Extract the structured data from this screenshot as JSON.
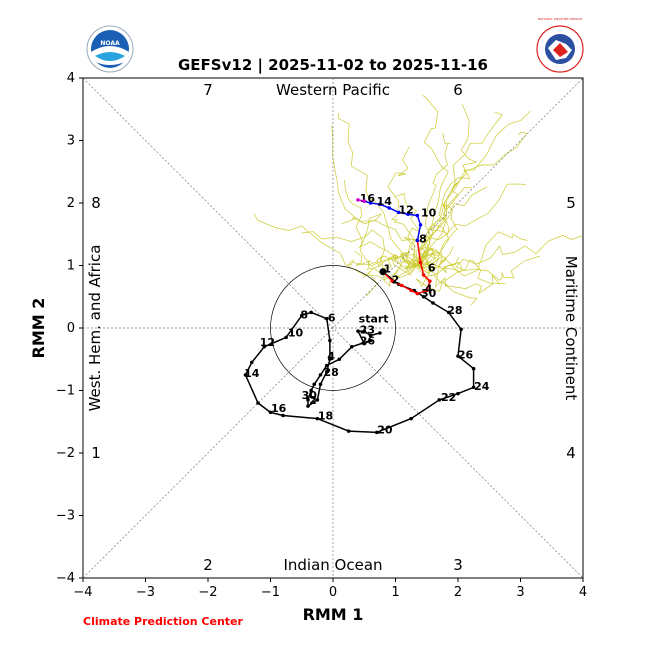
{
  "logos": {
    "left_text": "NOAA",
    "right_text": "NATIONAL WEATHER SERVICE"
  },
  "credit": "Climate Prediction Center",
  "chart_data": {
    "type": "line",
    "title": "GEFSv12 | 2025-11-02 to 2025-11-16",
    "xlabel": "RMM 1",
    "ylabel": "RMM 2",
    "xlim": [
      -4,
      4
    ],
    "ylim": [
      -4,
      4
    ],
    "xticks": [
      "−4",
      "−3",
      "−2",
      "−1",
      "0",
      "1",
      "2",
      "3",
      "4"
    ],
    "yticks": [
      "−4",
      "−3",
      "−2",
      "−1",
      "0",
      "1",
      "2",
      "3",
      "4"
    ],
    "regions": {
      "top": "Western Pacific",
      "bottom": "Indian Ocean",
      "left": "West. Hem. and Africa",
      "right": "Maritime Continent"
    },
    "phases": [
      "1",
      "2",
      "3",
      "4",
      "5",
      "6",
      "7",
      "8"
    ],
    "start_label": "start",
    "colors": {
      "observed": "#000000",
      "week1": "#ff0000",
      "week2": "#0000ff",
      "tail": "#cc00cc",
      "members": "#cccc33"
    },
    "series": [
      {
        "type": "observed",
        "points": [
          [
            0.75,
            -0.08
          ],
          [
            0.6,
            -0.12
          ],
          [
            0.5,
            -0.05
          ],
          [
            0.4,
            -0.05
          ],
          [
            0.5,
            -0.25
          ],
          [
            0.6,
            -0.2
          ],
          [
            0.3,
            -0.3
          ],
          [
            0.1,
            -0.5
          ],
          [
            -0.1,
            -0.6
          ],
          [
            -0.2,
            -0.75
          ],
          [
            -0.3,
            -0.9
          ],
          [
            -0.35,
            -1.0
          ],
          [
            -0.4,
            -1.15
          ],
          [
            -0.4,
            -1.25
          ],
          [
            -0.25,
            -1.15
          ],
          [
            -0.2,
            -0.9
          ],
          [
            -0.1,
            -0.7
          ],
          [
            -0.05,
            -0.5
          ],
          [
            -0.05,
            -0.2
          ],
          [
            -0.1,
            0.15
          ],
          [
            -0.35,
            0.25
          ],
          [
            -0.5,
            0.2
          ],
          [
            -0.75,
            -0.15
          ],
          [
            -1.1,
            -0.3
          ],
          [
            -1.3,
            -0.55
          ],
          [
            -1.4,
            -0.75
          ],
          [
            -1.2,
            -1.2
          ],
          [
            -1.0,
            -1.35
          ],
          [
            -0.8,
            -1.4
          ],
          [
            -0.25,
            -1.45
          ],
          [
            0.25,
            -1.65
          ],
          [
            0.7,
            -1.67
          ],
          [
            1.25,
            -1.45
          ],
          [
            1.7,
            -1.15
          ],
          [
            2.0,
            -1.05
          ],
          [
            2.25,
            -0.95
          ],
          [
            2.25,
            -0.65
          ],
          [
            2.0,
            -0.45
          ],
          [
            2.05,
            -0.02
          ],
          [
            1.85,
            0.25
          ],
          [
            1.6,
            0.4
          ],
          [
            1.45,
            0.5
          ],
          [
            1.3,
            0.6
          ],
          [
            1.05,
            0.7
          ],
          [
            0.8,
            0.9
          ]
        ],
        "labels": [
          {
            "text": "start",
            "x": 0.65,
            "y": 0.15
          },
          {
            "text": "23",
            "x": 0.55,
            "y": -0.02
          },
          {
            "text": "26",
            "x": 0.55,
            "y": -0.2
          },
          {
            "text": "4",
            "x": -0.03,
            "y": -0.45
          },
          {
            "text": "28",
            "x": -0.03,
            "y": -0.7
          },
          {
            "text": "30",
            "x": -0.38,
            "y": -1.07
          },
          {
            "text": "2",
            "x": -0.32,
            "y": -1.15
          },
          {
            "text": "6",
            "x": -0.02,
            "y": 0.17
          },
          {
            "text": "8",
            "x": -0.46,
            "y": 0.22
          },
          {
            "text": "10",
            "x": -0.6,
            "y": -0.07
          },
          {
            "text": "12",
            "x": -1.05,
            "y": -0.22
          },
          {
            "text": "14",
            "x": -1.3,
            "y": -0.72
          },
          {
            "text": "16",
            "x": -0.87,
            "y": -1.28
          },
          {
            "text": "18",
            "x": -0.12,
            "y": -1.4
          },
          {
            "text": "20",
            "x": 0.83,
            "y": -1.62
          },
          {
            "text": "22",
            "x": 1.85,
            "y": -1.1
          },
          {
            "text": "24",
            "x": 2.38,
            "y": -0.93
          },
          {
            "text": "26",
            "x": 2.12,
            "y": -0.42
          },
          {
            "text": "28",
            "x": 1.95,
            "y": 0.29
          },
          {
            "text": "30",
            "x": 1.53,
            "y": 0.56
          },
          {
            "text": "1",
            "x": 0.87,
            "y": 0.95
          }
        ]
      },
      {
        "type": "week1",
        "points": [
          [
            0.8,
            0.9
          ],
          [
            0.95,
            0.75
          ],
          [
            1.1,
            0.68
          ],
          [
            1.25,
            0.6
          ],
          [
            1.35,
            0.55
          ],
          [
            1.5,
            0.6
          ],
          [
            1.55,
            0.75
          ],
          [
            1.45,
            0.85
          ],
          [
            1.4,
            1.05
          ],
          [
            1.35,
            1.4
          ]
        ],
        "labels": [
          {
            "text": "2",
            "x": 1.0,
            "y": 0.78
          },
          {
            "text": "4",
            "x": 1.53,
            "y": 0.63
          },
          {
            "text": "6",
            "x": 1.58,
            "y": 0.97
          },
          {
            "text": "8",
            "x": 1.44,
            "y": 1.43
          }
        ]
      },
      {
        "type": "week2",
        "points": [
          [
            1.35,
            1.4
          ],
          [
            1.4,
            1.65
          ],
          [
            1.35,
            1.8
          ],
          [
            1.2,
            1.82
          ],
          [
            1.05,
            1.85
          ],
          [
            0.9,
            1.92
          ],
          [
            0.75,
            1.98
          ],
          [
            0.6,
            2.0
          ],
          [
            0.5,
            2.03
          ]
        ],
        "labels": [
          {
            "text": "10",
            "x": 1.53,
            "y": 1.85
          },
          {
            "text": "12",
            "x": 1.17,
            "y": 1.9
          },
          {
            "text": "14",
            "x": 0.82,
            "y": 2.03
          },
          {
            "text": "16",
            "x": 0.55,
            "y": 2.08
          }
        ]
      },
      {
        "type": "tail",
        "points": [
          [
            0.5,
            2.03
          ],
          [
            0.4,
            2.05
          ]
        ],
        "labels": []
      }
    ]
  }
}
